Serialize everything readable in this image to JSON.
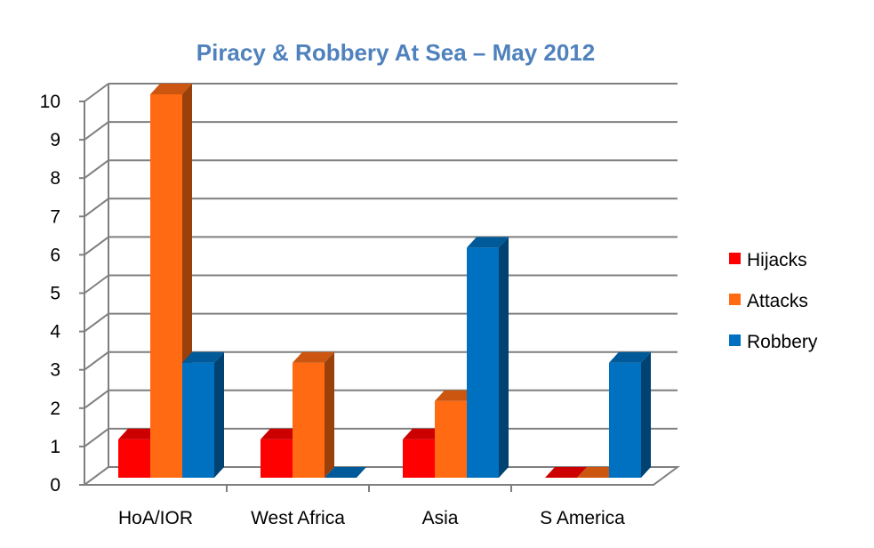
{
  "chart_data": {
    "type": "bar",
    "title": "Piracy & Robbery At Sea – May 2012",
    "xlabel": "",
    "ylabel": "",
    "categories": [
      "HoA/IOR",
      "West Africa",
      "Asia",
      "S America"
    ],
    "series": [
      {
        "name": "Hijacks",
        "values": [
          1,
          1,
          1,
          0
        ],
        "color": "#ff0000"
      },
      {
        "name": "Attacks",
        "values": [
          10,
          3,
          2,
          0
        ],
        "color": "#ff6a13"
      },
      {
        "name": "Robbery",
        "values": [
          3,
          0,
          6,
          3
        ],
        "color": "#0070c0"
      }
    ],
    "ylim": [
      0,
      10
    ],
    "yticks": [
      "0",
      "1",
      "2",
      "3",
      "4",
      "5",
      "6",
      "7",
      "8",
      "9",
      "10"
    ],
    "grid": true,
    "legend_position": "right",
    "style": "3d-clustered-column"
  }
}
